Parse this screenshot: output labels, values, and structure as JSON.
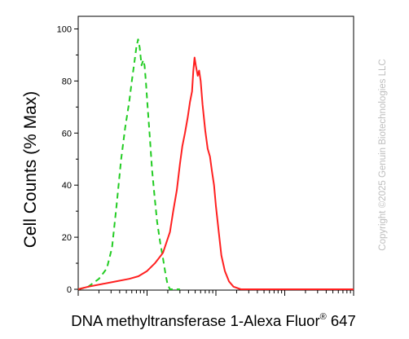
{
  "chart_data": {
    "type": "line",
    "title": "",
    "xlabel": "DNA methyltransferase 1-Alexa Fluor",
    "xlabel_sup": "®",
    "xlabel_suffix": " 647",
    "ylabel": "Cell Counts (% Max)",
    "xscale": "log",
    "xlim": [
      10,
      100000
    ],
    "ylim": [
      0,
      100
    ],
    "yticks": [
      0,
      20,
      40,
      60,
      80,
      100
    ],
    "grid": false,
    "series": [
      {
        "style": "dashed",
        "color": "#22cc22",
        "points": [
          [
            10,
            0
          ],
          [
            14,
            1
          ],
          [
            20,
            4
          ],
          [
            26,
            8
          ],
          [
            31,
            16
          ],
          [
            36,
            32
          ],
          [
            42,
            50
          ],
          [
            48,
            62
          ],
          [
            55,
            72
          ],
          [
            60,
            80
          ],
          [
            66,
            88
          ],
          [
            70,
            93
          ],
          [
            74,
            96
          ],
          [
            78,
            93
          ],
          [
            83,
            86
          ],
          [
            88,
            88
          ],
          [
            92,
            86
          ],
          [
            96,
            80
          ],
          [
            102,
            70
          ],
          [
            110,
            58
          ],
          [
            118,
            46
          ],
          [
            128,
            36
          ],
          [
            140,
            26
          ],
          [
            155,
            18
          ],
          [
            170,
            12
          ],
          [
            185,
            6
          ],
          [
            198,
            2
          ],
          [
            215,
            0
          ],
          [
            300,
            0
          ]
        ]
      },
      {
        "style": "solid",
        "color": "#ff2020",
        "points": [
          [
            10,
            0
          ],
          [
            14,
            1
          ],
          [
            22,
            2
          ],
          [
            35,
            3
          ],
          [
            55,
            4
          ],
          [
            75,
            5
          ],
          [
            100,
            7
          ],
          [
            130,
            10
          ],
          [
            170,
            14
          ],
          [
            215,
            22
          ],
          [
            240,
            30
          ],
          [
            270,
            38
          ],
          [
            300,
            48
          ],
          [
            325,
            55
          ],
          [
            355,
            60
          ],
          [
            390,
            66
          ],
          [
            420,
            72
          ],
          [
            450,
            76
          ],
          [
            470,
            84
          ],
          [
            490,
            89
          ],
          [
            510,
            86
          ],
          [
            545,
            82
          ],
          [
            570,
            84
          ],
          [
            600,
            80
          ],
          [
            640,
            71
          ],
          [
            700,
            61
          ],
          [
            760,
            54
          ],
          [
            820,
            51
          ],
          [
            880,
            45
          ],
          [
            940,
            40
          ],
          [
            1000,
            32
          ],
          [
            1100,
            22
          ],
          [
            1200,
            13
          ],
          [
            1350,
            7
          ],
          [
            1550,
            3
          ],
          [
            1800,
            1
          ],
          [
            2300,
            0
          ],
          [
            100000,
            0
          ]
        ]
      }
    ]
  },
  "watermark": "Copyright ©2025 Genuin Biotechnologies LLC"
}
